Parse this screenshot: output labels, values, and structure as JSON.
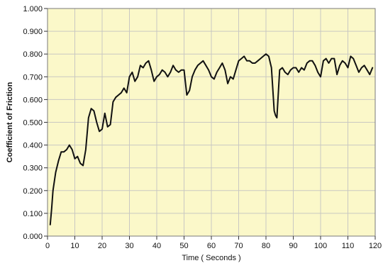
{
  "chart_data": {
    "type": "line",
    "title": "",
    "xlabel": "Time ( Seconds )",
    "ylabel": "Coefficient of Friction",
    "xlim": [
      0,
      120
    ],
    "ylim": [
      0,
      1
    ],
    "grid": true,
    "xticks": [
      0,
      10,
      20,
      30,
      40,
      50,
      60,
      70,
      80,
      90,
      100,
      110,
      120
    ],
    "yticks": [
      0,
      0.1,
      0.2,
      0.3,
      0.4,
      0.5,
      0.6,
      0.7,
      0.8,
      0.9,
      1.0
    ],
    "xtick_labels": [
      "0",
      "10",
      "20",
      "30",
      "40",
      "50",
      "60",
      "70",
      "80",
      "90",
      "100",
      "110",
      "120"
    ],
    "ytick_labels": [
      "0.000",
      "0.100",
      "0.200",
      "0.300",
      "0.400",
      "0.500",
      "0.600",
      "0.700",
      "0.800",
      "0.900",
      "1.000"
    ],
    "colors": {
      "plot_bg": "#fbf8c9",
      "grid": "#c9c8c2",
      "line": "#111111",
      "frame": "#7a7a7a",
      "outer_bg": "#ffffff"
    },
    "series": [
      {
        "x": [
          1,
          1.5,
          2,
          3,
          4,
          5,
          6,
          7,
          8,
          9,
          10,
          11,
          12,
          13,
          14,
          15,
          16,
          17,
          18,
          19,
          20,
          21,
          22,
          23,
          24,
          25,
          26,
          27,
          28,
          29,
          30,
          31,
          32,
          33,
          34,
          35,
          36,
          37,
          38,
          39,
          40,
          41,
          42,
          43,
          44,
          45,
          46,
          47,
          48,
          49,
          50,
          51,
          52,
          53,
          54,
          55,
          56,
          57,
          58,
          59,
          60,
          61,
          62,
          63,
          64,
          65,
          66,
          67,
          68,
          69,
          70,
          71,
          72,
          73,
          74,
          75,
          76,
          77,
          78,
          79,
          80,
          81,
          82,
          83,
          83.5,
          84,
          85,
          86,
          87,
          88,
          89,
          90,
          91,
          92,
          93,
          94,
          95,
          96,
          97,
          98,
          99,
          100,
          101,
          102,
          103,
          104,
          105,
          106,
          107,
          108,
          109,
          110,
          111,
          112,
          113,
          114,
          115,
          116,
          117,
          118,
          119
        ],
        "y": [
          0.05,
          0.12,
          0.2,
          0.28,
          0.33,
          0.37,
          0.37,
          0.38,
          0.4,
          0.38,
          0.34,
          0.35,
          0.32,
          0.31,
          0.38,
          0.52,
          0.56,
          0.55,
          0.5,
          0.46,
          0.47,
          0.54,
          0.48,
          0.49,
          0.59,
          0.61,
          0.62,
          0.63,
          0.65,
          0.63,
          0.7,
          0.72,
          0.68,
          0.7,
          0.75,
          0.74,
          0.76,
          0.77,
          0.73,
          0.68,
          0.7,
          0.71,
          0.73,
          0.72,
          0.7,
          0.72,
          0.75,
          0.73,
          0.72,
          0.73,
          0.73,
          0.62,
          0.64,
          0.7,
          0.73,
          0.75,
          0.76,
          0.77,
          0.75,
          0.73,
          0.7,
          0.69,
          0.72,
          0.74,
          0.76,
          0.73,
          0.67,
          0.7,
          0.69,
          0.73,
          0.77,
          0.78,
          0.79,
          0.77,
          0.77,
          0.76,
          0.76,
          0.77,
          0.78,
          0.79,
          0.8,
          0.79,
          0.74,
          0.55,
          0.53,
          0.52,
          0.73,
          0.74,
          0.72,
          0.71,
          0.73,
          0.74,
          0.74,
          0.72,
          0.74,
          0.73,
          0.76,
          0.77,
          0.77,
          0.75,
          0.72,
          0.7,
          0.77,
          0.78,
          0.76,
          0.78,
          0.78,
          0.71,
          0.75,
          0.77,
          0.76,
          0.74,
          0.79,
          0.78,
          0.75,
          0.72,
          0.74,
          0.75,
          0.73,
          0.71,
          0.74
        ]
      }
    ]
  }
}
